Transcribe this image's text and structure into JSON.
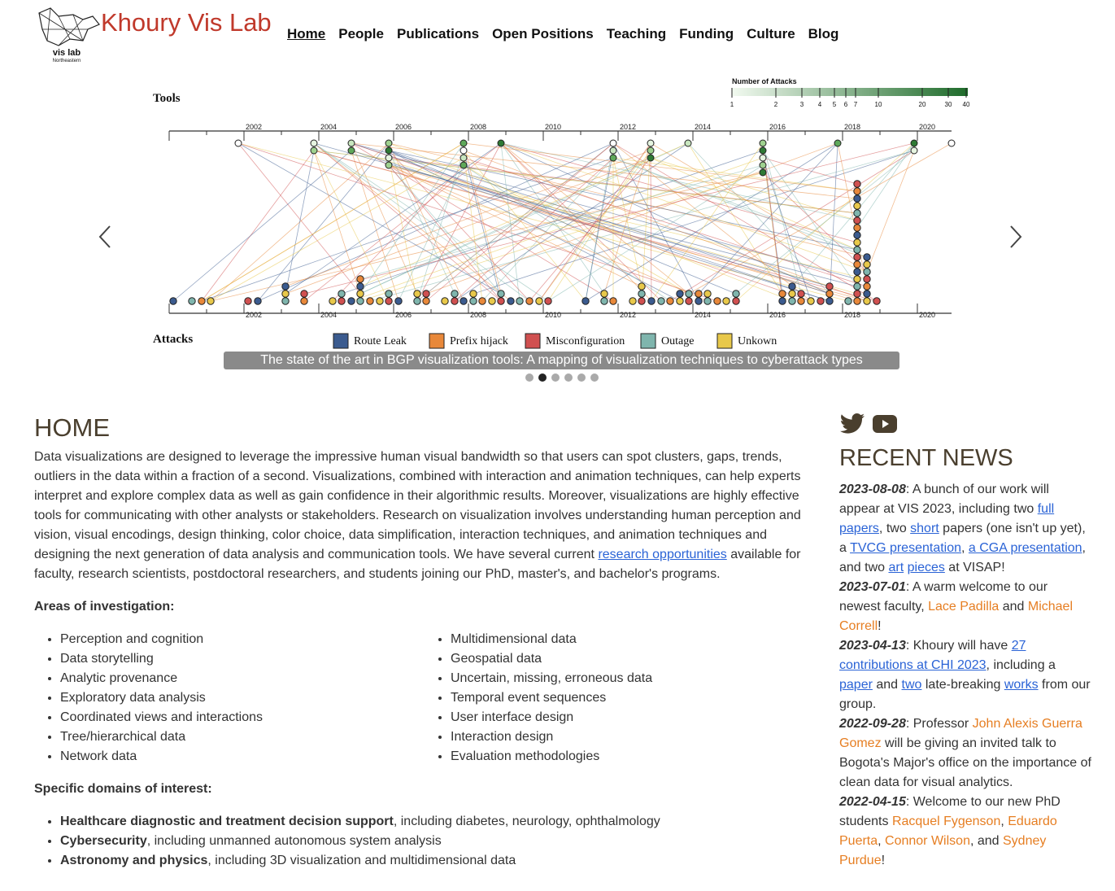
{
  "header": {
    "logo_text": "vis lab",
    "logo_subtext": "Northeastern",
    "brand": "Khoury Vis Lab",
    "nav": [
      {
        "label": "Home",
        "active": true
      },
      {
        "label": "People"
      },
      {
        "label": "Publications"
      },
      {
        "label": "Open Positions"
      },
      {
        "label": "Teaching"
      },
      {
        "label": "Funding"
      },
      {
        "label": "Culture"
      },
      {
        "label": "Blog"
      }
    ]
  },
  "carousel": {
    "prev_icon": "chevron-left-icon",
    "next_icon": "chevron-right-icon",
    "caption": "The state of the art in BGP visualization tools: A mapping of visualization techniques to cyberattack types",
    "slide_count": 6,
    "active_index": 1,
    "figure": {
      "tools_label": "Tools",
      "attacks_label": "Attacks",
      "scale_title": "Number of Attacks",
      "scale_ticks": [
        "1",
        "2",
        "3",
        "4",
        "5",
        "6",
        "7",
        "10",
        "20",
        "30",
        "40"
      ],
      "year_ticks": [
        "2002",
        "2004",
        "2006",
        "2008",
        "2010",
        "2012",
        "2014",
        "2016",
        "2018",
        "2020"
      ],
      "legend": [
        {
          "label": "Route Leak",
          "color": "#3b5b8f"
        },
        {
          "label": "Prefix hijack",
          "color": "#e8883a"
        },
        {
          "label": "Misconfiguration",
          "color": "#d05050"
        },
        {
          "label": "Outage",
          "color": "#7fb5ad"
        },
        {
          "label": "Unkown",
          "color": "#e8c84a"
        }
      ]
    }
  },
  "main": {
    "title": "HOME",
    "intro_before": "Data visualizations are designed to leverage the impressive human visual bandwidth so that users can spot clusters, gaps, trends, outliers in the data within a fraction of a second. Visualizations, combined with interaction and animation techniques, can help experts interpret and explore complex data as well as gain confidence in their algorithmic results. Moreover, visualizations are highly effective tools for communicating with other analysts or stakeholders. Research on visualization involves understanding human perception and vision, visual encodings, design thinking, color choice, data simplification, interaction techniques, and animation techniques and designing the next generation of data analysis and communication tools. We have several current ",
    "intro_link": "research opportunities",
    "intro_after": " available for faculty, research scientists, postdoctoral researchers, and students joining our PhD, master's, and bachelor's programs.",
    "areas_title": "Areas of investigation:",
    "areas_left": [
      "Perception and cognition",
      "Data storytelling",
      "Analytic provenance",
      "Exploratory data analysis",
      "Coordinated views and interactions",
      "Tree/hierarchical data",
      "Network data"
    ],
    "areas_right": [
      "Multidimensional data",
      "Geospatial data",
      "Uncertain, missing, erroneous data",
      "Temporal event sequences",
      "User interface design",
      "Interaction design",
      "Evaluation methodologies"
    ],
    "domains_title": "Specific domains of interest:",
    "domains": [
      {
        "bold": "Healthcare diagnostic and treatment decision support",
        "rest": ", including diabetes, neurology, ophthalmology"
      },
      {
        "bold": "Cybersecurity",
        "rest": ", including unmanned autonomous system analysis"
      },
      {
        "bold": "Astronomy and physics",
        "rest": ", including 3D visualization and multidimensional data"
      }
    ]
  },
  "sidebar": {
    "social_icons": [
      "twitter-icon",
      "youtube-icon"
    ],
    "news_title": "RECENT NEWS",
    "news": [
      {
        "date": "2023-08-08",
        "parts": [
          {
            "t": ": A bunch of our work will appear at VIS 2023, including two "
          },
          {
            "t": "full papers",
            "link": true
          },
          {
            "t": ", two "
          },
          {
            "t": "short",
            "link": true
          },
          {
            "t": " papers (one isn't up yet), a "
          },
          {
            "t": "TVCG presentation",
            "link": true
          },
          {
            "t": ", "
          },
          {
            "t": "a CGA presentation",
            "link": true
          },
          {
            "t": ", and two "
          },
          {
            "t": "art",
            "link": true
          },
          {
            "t": " "
          },
          {
            "t": "pieces",
            "link": true
          },
          {
            "t": " at VISAP!"
          }
        ]
      },
      {
        "date": "2023-07-01",
        "parts": [
          {
            "t": ": A warm welcome to our newest faculty, "
          },
          {
            "t": "Lace Padilla",
            "person": true
          },
          {
            "t": " and "
          },
          {
            "t": "Michael Correll",
            "person": true
          },
          {
            "t": "!"
          }
        ]
      },
      {
        "date": "2023-04-13",
        "parts": [
          {
            "t": ": Khoury will have "
          },
          {
            "t": "27 contributions at CHI 2023",
            "link": true
          },
          {
            "t": ", including a "
          },
          {
            "t": "paper",
            "link": true
          },
          {
            "t": " and "
          },
          {
            "t": "two",
            "link": true
          },
          {
            "t": " late-breaking "
          },
          {
            "t": "works",
            "link": true
          },
          {
            "t": " from our group."
          }
        ]
      },
      {
        "date": "2022-09-28",
        "parts": [
          {
            "t": ": Professor "
          },
          {
            "t": "John Alexis Guerra Gomez",
            "person": true
          },
          {
            "t": " will be giving an invited talk to Bogota's Major's office on the importance of clean data for visual analytics."
          }
        ]
      },
      {
        "date": "2022-04-15",
        "parts": [
          {
            "t": ": Welcome to our new PhD students "
          },
          {
            "t": "Racquel Fygenson",
            "person": true
          },
          {
            "t": ", "
          },
          {
            "t": "Eduardo Puerta",
            "person": true
          },
          {
            "t": ", "
          },
          {
            "t": "Connor Wilson",
            "person": true
          },
          {
            "t": ", and "
          },
          {
            "t": "Sydney Purdue",
            "person": true
          },
          {
            "t": "!"
          }
        ]
      }
    ]
  }
}
